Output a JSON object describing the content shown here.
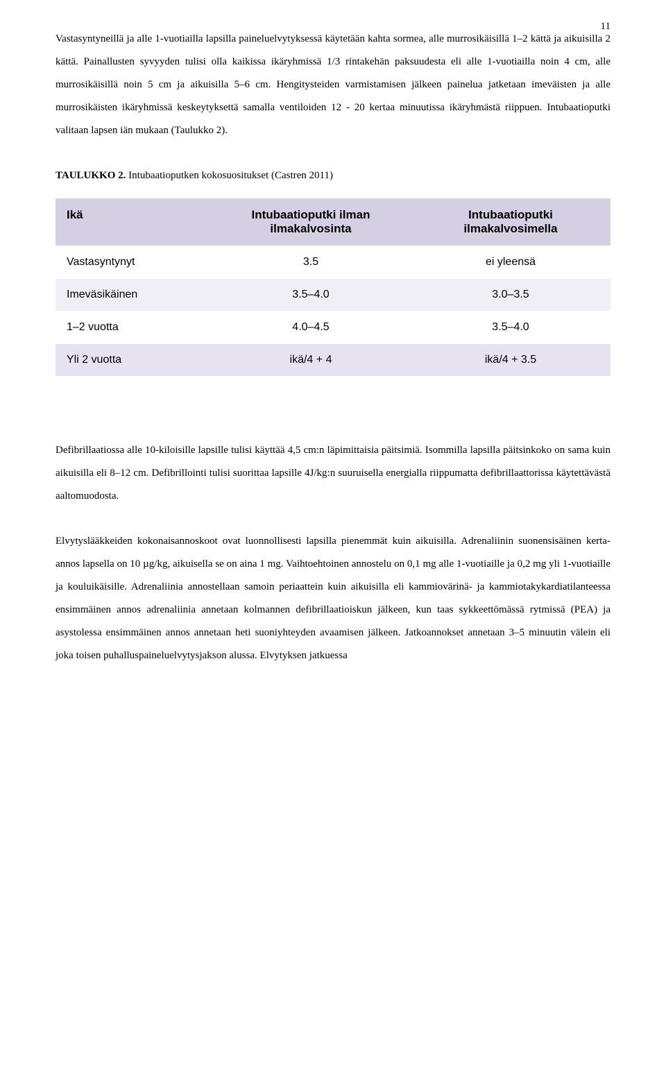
{
  "page_number": "11",
  "paragraphs": {
    "p1": "Vastasyntyneillä ja alle 1-vuotiailla lapsilla paineluelvytyksessä käytetään kahta sormea, alle murrosikäisillä 1–2 kättä ja aikuisilla 2 kättä. Painallusten syvyyden tulisi olla kaikissa ikäryhmissä 1/3 rintakehän paksuudesta eli alle 1-vuotiailla noin 4 cm, alle murrosikäisillä noin 5 cm ja aikuisilla 5–6 cm. Hengitysteiden varmistamisen jälkeen painelua jatketaan imeväisten ja alle murrosikäisten ikäryhmissä keskeytyksettä samalla ventiloiden 12 - 20 kertaa minuutissa ikäryhmästä riippuen. Intubaatioputki valitaan lapsen iän mukaan (Taulukko 2).",
    "p2": "Defibrillaatiossa alle 10-kiloisille lapsille tulisi käyttää 4,5 cm:n läpimittaisia päitsimiä. Isommilla lapsilla päitsinkoko on sama kuin aikuisilla eli 8–12 cm. Defibrillointi tulisi suorittaa lapsille 4J/kg:n suuruisella energialla riippumatta defibrillaattorissa käytettävästä aaltomuodosta.",
    "p3": "Elvytyslääkkeiden kokonaisannoskoot ovat luonnollisesti lapsilla pienemmät kuin aikuisilla. Adrenaliinin suonensisäinen kerta-annos lapsella on 10 µg/kg, aikuisella se on aina 1 mg. Vaihtoehtoinen annostelu on 0,1 mg alle 1-vuotiaille ja 0,2 mg yli 1-vuotiaille ja kouluikäisille. Adrenaliinia annostellaan samoin periaattein kuin aikuisilla eli kammiovärinä- ja kammiotakykardiatilanteessa ensimmäinen annos adrenaliinia annetaan kolmannen defibrillaatioiskun jälkeen, kun taas sykkeettömässä rytmissä (PEA) ja asystolessa ensimmäinen annos annetaan heti suoniyhteyden avaamisen jälkeen. Jatkoannokset annetaan 3–5 minuutin välein eli joka toisen puhalluspaineluelvytysjakson alussa. Elvytyksen jatkuessa"
  },
  "table_caption_label": "TAULUKKO 2.",
  "table_caption_text": " Intubaatioputken kokosuositukset (Castren 2011)",
  "table": {
    "type": "table",
    "header_bg": "#d4cfe3",
    "row_white_bg": "#ffffff",
    "row_light_bg": "#f0eef6",
    "row_mid_bg": "#e6e2ef",
    "font_family": "Arial",
    "header_fontsize": 17,
    "cell_fontsize": 16,
    "columns": [
      {
        "label": "Ikä",
        "width_pct": 28,
        "align": "left"
      },
      {
        "label": "Intubaatioputki ilman ilmakalvosinta",
        "width_pct": 36,
        "align": "center"
      },
      {
        "label": "Intubaatioputki ilmakalvosimella",
        "width_pct": 36,
        "align": "center"
      }
    ],
    "rows": [
      {
        "cells": [
          "Vastasyntynyt",
          "3.5",
          "ei yleensä"
        ],
        "shade": "white"
      },
      {
        "cells": [
          "Imeväsikäinen",
          "3.5–4.0",
          "3.0–3.5"
        ],
        "shade": "light"
      },
      {
        "cells": [
          "1–2 vuotta",
          "4.0–4.5",
          "3.5–4.0"
        ],
        "shade": "white"
      },
      {
        "cells": [
          "Yli 2 vuotta",
          "ikä/4 + 4",
          "ikä/4 + 3.5"
        ],
        "shade": "mid"
      }
    ]
  },
  "colors": {
    "text": "#000000",
    "background": "#ffffff",
    "table_header_bg": "#d4cfe3",
    "table_row_white": "#ffffff",
    "table_row_light": "#f0eef6",
    "table_row_mid": "#e6e2ef"
  },
  "typography": {
    "body_font": "Georgia, Times New Roman, serif",
    "body_fontsize": 15,
    "body_lineheight": 2.2,
    "table_font": "Arial, Helvetica, sans-serif"
  }
}
